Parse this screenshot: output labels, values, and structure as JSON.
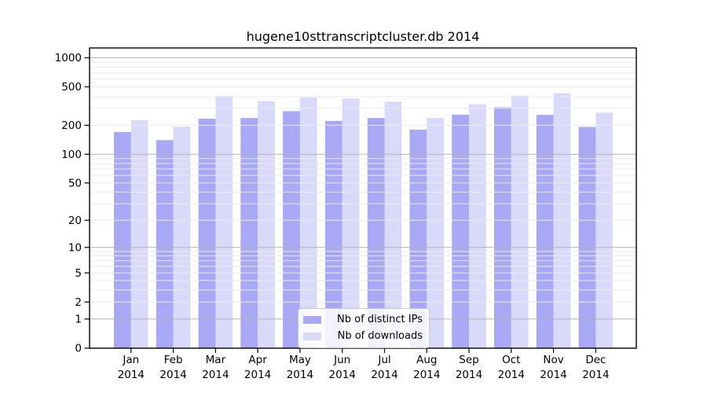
{
  "chart_data": {
    "type": "bar",
    "title": "hugene10sttranscriptcluster.db 2014",
    "xlabel": "",
    "ylabel": "",
    "year_label": "2014",
    "categories": [
      "Jan",
      "Feb",
      "Mar",
      "Apr",
      "May",
      "Jun",
      "Jul",
      "Aug",
      "Sep",
      "Oct",
      "Nov",
      "Dec"
    ],
    "series": [
      {
        "name": "Nb of distinct IPs",
        "color": "#a8a8f4",
        "values": [
          170,
          140,
          234,
          238,
          280,
          222,
          238,
          180,
          258,
          308,
          256,
          192
        ]
      },
      {
        "name": "Nb of downloads",
        "color": "#d9d9f9",
        "values": [
          225,
          193,
          400,
          356,
          388,
          378,
          350,
          238,
          330,
          406,
          430,
          270
        ]
      }
    ],
    "yticks": [
      0,
      1,
      2,
      5,
      10,
      20,
      50,
      100,
      200,
      500,
      1000
    ],
    "ylim": [
      0,
      1000
    ],
    "yscale": "log10(value+1)",
    "grid": "horizontal, minor light gray, major gray at 1/10/100/1000, drawn over bars",
    "legend_position": "inside plot, bottom center-right",
    "colors": {
      "frame": "#000000",
      "grid_minor": "#ebebeb",
      "grid_major": "#b3b3b3",
      "background": "#ffffff"
    }
  }
}
